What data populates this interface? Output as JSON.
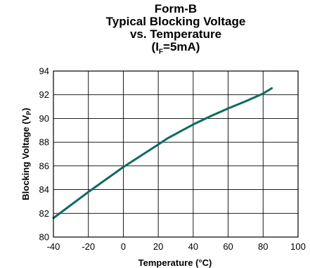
{
  "chart_data": {
    "type": "line",
    "title_lines": [
      {
        "text": "Form-B"
      },
      {
        "text": "Typical Blocking Voltage"
      },
      {
        "text": "vs. Temperature"
      },
      {
        "prefix": "(I",
        "sub": "F",
        "suffix": "=5mA)"
      }
    ],
    "xlabel": "Temperature (°C)",
    "ylabel": {
      "prefix": "Blocking Voltage (V",
      "sub": "P",
      "suffix": ")"
    },
    "xlim": [
      -40,
      100
    ],
    "ylim": [
      80,
      94
    ],
    "x_ticks": [
      -40,
      -20,
      0,
      20,
      40,
      60,
      80,
      100
    ],
    "y_ticks": [
      80,
      82,
      84,
      86,
      88,
      90,
      92,
      94
    ],
    "grid": true,
    "line_color": "#0e6b5e",
    "series": [
      {
        "x": [
          -40,
          -20,
          0,
          20,
          25,
          40,
          50,
          60,
          70,
          80,
          85
        ],
        "y": [
          81.6,
          83.8,
          85.9,
          87.8,
          88.3,
          89.5,
          90.2,
          90.85,
          91.45,
          92.1,
          92.55
        ]
      }
    ]
  }
}
